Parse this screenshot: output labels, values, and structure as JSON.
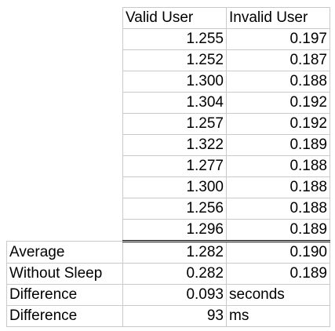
{
  "headers": {
    "valid": "Valid User",
    "invalid": "Invalid User"
  },
  "rows": [
    {
      "valid": "1.255",
      "invalid": "0.197"
    },
    {
      "valid": "1.252",
      "invalid": "0.187"
    },
    {
      "valid": "1.300",
      "invalid": "0.188"
    },
    {
      "valid": "1.304",
      "invalid": "0.192"
    },
    {
      "valid": "1.257",
      "invalid": "0.192"
    },
    {
      "valid": "1.322",
      "invalid": "0.189"
    },
    {
      "valid": "1.277",
      "invalid": "0.188"
    },
    {
      "valid": "1.300",
      "invalid": "0.188"
    },
    {
      "valid": "1.256",
      "invalid": "0.188"
    },
    {
      "valid": "1.296",
      "invalid": "0.189"
    }
  ],
  "summary": [
    {
      "label": "Average",
      "valid": "1.282",
      "invalid": "0.190"
    },
    {
      "label": "Without Sleep",
      "valid": "0.282",
      "invalid": "0.189"
    },
    {
      "label": "Difference",
      "valid": "0.093",
      "invalid": "seconds"
    },
    {
      "label": "Difference",
      "valid": "93",
      "invalid": "ms"
    }
  ]
}
